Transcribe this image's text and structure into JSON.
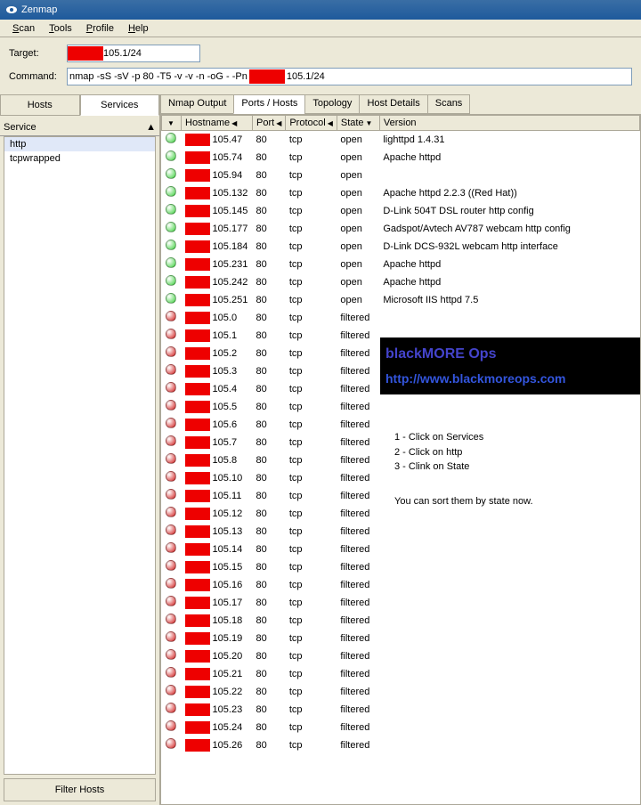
{
  "window": {
    "title": "Zenmap"
  },
  "menu": {
    "scan": "Scan",
    "tools": "Tools",
    "profile": "Profile",
    "help": "Help"
  },
  "form": {
    "target_label": "Target:",
    "target_suffix": "105.1/24",
    "command_label": "Command:",
    "command_pre": "nmap -sS -sV -p 80 -T5 -v -v -n -oG - -Pn",
    "command_suf": "105.1/24"
  },
  "side": {
    "hosts_tab": "Hosts",
    "services_tab": "Services",
    "service_header": "Service",
    "items": [
      "http",
      "tcpwrapped"
    ],
    "filter_btn": "Filter Hosts"
  },
  "tabs": {
    "nmap_output": "Nmap Output",
    "ports_hosts": "Ports / Hosts",
    "topology": "Topology",
    "host_details": "Host Details",
    "scans": "Scans"
  },
  "columns": {
    "c0": "",
    "c1": "Hostname",
    "c2": "Port",
    "c3": "Protocol",
    "c4": "State",
    "c5": "Version"
  },
  "colors": {
    "open": "#3bd13b",
    "filtered": "#d11919"
  },
  "rows": [
    {
      "st": "open",
      "host": "105.47",
      "port": "80",
      "proto": "tcp",
      "state": "open",
      "ver": "lighttpd 1.4.31"
    },
    {
      "st": "open",
      "host": "105.74",
      "port": "80",
      "proto": "tcp",
      "state": "open",
      "ver": "Apache httpd"
    },
    {
      "st": "open",
      "host": "105.94",
      "port": "80",
      "proto": "tcp",
      "state": "open",
      "ver": ""
    },
    {
      "st": "open",
      "host": "105.132",
      "port": "80",
      "proto": "tcp",
      "state": "open",
      "ver": "Apache httpd 2.2.3 ((Red Hat))"
    },
    {
      "st": "open",
      "host": "105.145",
      "port": "80",
      "proto": "tcp",
      "state": "open",
      "ver": "D-Link 504T DSL router http config"
    },
    {
      "st": "open",
      "host": "105.177",
      "port": "80",
      "proto": "tcp",
      "state": "open",
      "ver": "Gadspot/Avtech AV787 webcam http config"
    },
    {
      "st": "open",
      "host": "105.184",
      "port": "80",
      "proto": "tcp",
      "state": "open",
      "ver": "D-Link DCS-932L webcam http interface"
    },
    {
      "st": "open",
      "host": "105.231",
      "port": "80",
      "proto": "tcp",
      "state": "open",
      "ver": "Apache httpd"
    },
    {
      "st": "open",
      "host": "105.242",
      "port": "80",
      "proto": "tcp",
      "state": "open",
      "ver": "Apache httpd"
    },
    {
      "st": "open",
      "host": "105.251",
      "port": "80",
      "proto": "tcp",
      "state": "open",
      "ver": "Microsoft IIS httpd 7.5"
    },
    {
      "st": "filtered",
      "host": "105.0",
      "port": "80",
      "proto": "tcp",
      "state": "filtered",
      "ver": ""
    },
    {
      "st": "filtered",
      "host": "105.1",
      "port": "80",
      "proto": "tcp",
      "state": "filtered",
      "ver": ""
    },
    {
      "st": "filtered",
      "host": "105.2",
      "port": "80",
      "proto": "tcp",
      "state": "filtered",
      "ver": ""
    },
    {
      "st": "filtered",
      "host": "105.3",
      "port": "80",
      "proto": "tcp",
      "state": "filtered",
      "ver": ""
    },
    {
      "st": "filtered",
      "host": "105.4",
      "port": "80",
      "proto": "tcp",
      "state": "filtered",
      "ver": ""
    },
    {
      "st": "filtered",
      "host": "105.5",
      "port": "80",
      "proto": "tcp",
      "state": "filtered",
      "ver": ""
    },
    {
      "st": "filtered",
      "host": "105.6",
      "port": "80",
      "proto": "tcp",
      "state": "filtered",
      "ver": ""
    },
    {
      "st": "filtered",
      "host": "105.7",
      "port": "80",
      "proto": "tcp",
      "state": "filtered",
      "ver": ""
    },
    {
      "st": "filtered",
      "host": "105.8",
      "port": "80",
      "proto": "tcp",
      "state": "filtered",
      "ver": ""
    },
    {
      "st": "filtered",
      "host": "105.10",
      "port": "80",
      "proto": "tcp",
      "state": "filtered",
      "ver": ""
    },
    {
      "st": "filtered",
      "host": "105.11",
      "port": "80",
      "proto": "tcp",
      "state": "filtered",
      "ver": ""
    },
    {
      "st": "filtered",
      "host": "105.12",
      "port": "80",
      "proto": "tcp",
      "state": "filtered",
      "ver": ""
    },
    {
      "st": "filtered",
      "host": "105.13",
      "port": "80",
      "proto": "tcp",
      "state": "filtered",
      "ver": ""
    },
    {
      "st": "filtered",
      "host": "105.14",
      "port": "80",
      "proto": "tcp",
      "state": "filtered",
      "ver": ""
    },
    {
      "st": "filtered",
      "host": "105.15",
      "port": "80",
      "proto": "tcp",
      "state": "filtered",
      "ver": ""
    },
    {
      "st": "filtered",
      "host": "105.16",
      "port": "80",
      "proto": "tcp",
      "state": "filtered",
      "ver": ""
    },
    {
      "st": "filtered",
      "host": "105.17",
      "port": "80",
      "proto": "tcp",
      "state": "filtered",
      "ver": ""
    },
    {
      "st": "filtered",
      "host": "105.18",
      "port": "80",
      "proto": "tcp",
      "state": "filtered",
      "ver": ""
    },
    {
      "st": "filtered",
      "host": "105.19",
      "port": "80",
      "proto": "tcp",
      "state": "filtered",
      "ver": ""
    },
    {
      "st": "filtered",
      "host": "105.20",
      "port": "80",
      "proto": "tcp",
      "state": "filtered",
      "ver": ""
    },
    {
      "st": "filtered",
      "host": "105.21",
      "port": "80",
      "proto": "tcp",
      "state": "filtered",
      "ver": ""
    },
    {
      "st": "filtered",
      "host": "105.22",
      "port": "80",
      "proto": "tcp",
      "state": "filtered",
      "ver": ""
    },
    {
      "st": "filtered",
      "host": "105.23",
      "port": "80",
      "proto": "tcp",
      "state": "filtered",
      "ver": ""
    },
    {
      "st": "filtered",
      "host": "105.24",
      "port": "80",
      "proto": "tcp",
      "state": "filtered",
      "ver": ""
    },
    {
      "st": "filtered",
      "host": "105.26",
      "port": "80",
      "proto": "tcp",
      "state": "filtered",
      "ver": ""
    }
  ],
  "overlay": {
    "banner_title": "blackMORE Ops",
    "banner_url": "http://www.blackmoreops.com",
    "instr1": "1 - Click on Services",
    "instr2": "2 - Click on http",
    "instr3": "3 - Clink on State",
    "instr4": "You can sort them by state now."
  }
}
